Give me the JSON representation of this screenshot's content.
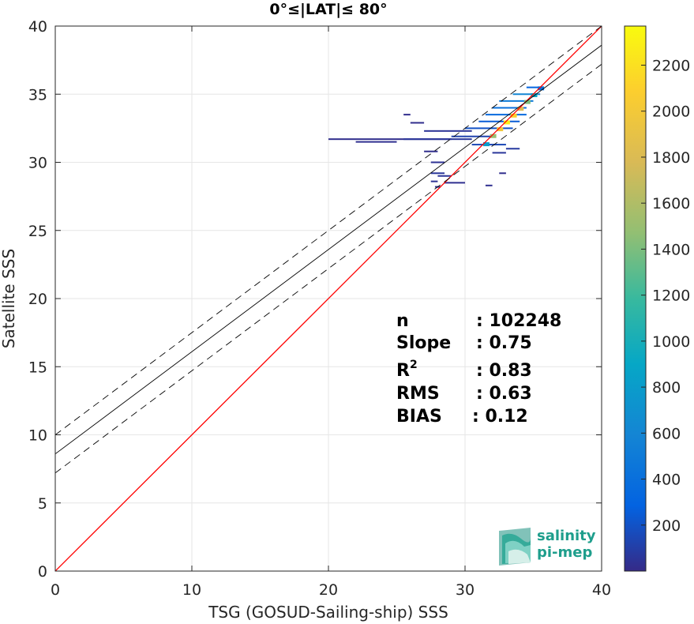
{
  "chart_data": {
    "type": "heatmap",
    "title": "0°≤|LAT|≤ 80°",
    "xlabel": "TSG (GOSUD-Sailing-ship) SSS",
    "ylabel": "Satellite SSS",
    "xlim": [
      0,
      40
    ],
    "ylim": [
      0,
      40
    ],
    "xticks": [
      "0",
      "10",
      "20",
      "30",
      "40"
    ],
    "yticks": [
      "0",
      "5",
      "10",
      "15",
      "20",
      "25",
      "30",
      "35",
      "40"
    ],
    "grid": true,
    "colorbar": {
      "ticks": [
        "200",
        "400",
        "600",
        "800",
        "1000",
        "1200",
        "1400",
        "1600",
        "1800",
        "2000",
        "2200"
      ],
      "range": [
        0,
        2370
      ],
      "colormap": "parula"
    },
    "lines": [
      {
        "role": "identity",
        "slope": 1,
        "intercept": 0,
        "color": "#ff0000",
        "style": "solid"
      },
      {
        "role": "fit",
        "slope": 0.75,
        "intercept": 8.6,
        "color": "#000000",
        "style": "solid"
      },
      {
        "role": "fit-upper",
        "slope": 0.75,
        "intercept": 10.0,
        "color": "#000000",
        "style": "dashed"
      },
      {
        "role": "fit-lower",
        "slope": 0.75,
        "intercept": 7.2,
        "color": "#000000",
        "style": "dashed"
      }
    ],
    "density_segments": [
      {
        "x0": 20.0,
        "x1": 29.0,
        "y": 31.7,
        "count": 20
      },
      {
        "x0": 22.0,
        "x1": 25.0,
        "y": 31.5,
        "count": 30
      },
      {
        "x0": 25.5,
        "x1": 30.5,
        "y": 31.7,
        "count": 60
      },
      {
        "x0": 27.0,
        "x1": 30.5,
        "y": 32.3,
        "count": 50
      },
      {
        "x0": 29.0,
        "x1": 32.0,
        "y": 31.9,
        "count": 120
      },
      {
        "x0": 30.0,
        "x1": 33.5,
        "y": 32.5,
        "count": 200
      },
      {
        "x0": 30.5,
        "x1": 33.0,
        "y": 31.3,
        "count": 150
      },
      {
        "x0": 31.0,
        "x1": 34.0,
        "y": 33.0,
        "count": 250
      },
      {
        "x0": 31.5,
        "x1": 34.5,
        "y": 33.5,
        "count": 350
      },
      {
        "x0": 32.0,
        "x1": 34.5,
        "y": 34.0,
        "count": 400
      },
      {
        "x0": 32.5,
        "x1": 35.0,
        "y": 34.5,
        "count": 500
      },
      {
        "x0": 33.5,
        "x1": 35.5,
        "y": 35.0,
        "count": 600
      },
      {
        "x0": 34.5,
        "x1": 35.5,
        "y": 35.5,
        "count": 300
      },
      {
        "x0": 27.5,
        "x1": 28.5,
        "y": 30.0,
        "count": 40
      },
      {
        "x0": 27.5,
        "x1": 28.5,
        "y": 29.2,
        "count": 60
      },
      {
        "x0": 28.0,
        "x1": 29.0,
        "y": 29.0,
        "count": 50
      },
      {
        "x0": 27.5,
        "x1": 28.0,
        "y": 28.6,
        "count": 40
      },
      {
        "x0": 28.5,
        "x1": 30.0,
        "y": 28.5,
        "count": 30
      },
      {
        "x0": 27.8,
        "x1": 28.2,
        "y": 28.2,
        "count": 30
      },
      {
        "x0": 26.0,
        "x1": 27.0,
        "y": 32.9,
        "count": 20
      },
      {
        "x0": 25.5,
        "x1": 26.0,
        "y": 33.5,
        "count": 20
      },
      {
        "x0": 27.0,
        "x1": 28.0,
        "y": 30.8,
        "count": 20
      },
      {
        "x0": 31.5,
        "x1": 32.0,
        "y": 28.3,
        "count": 30
      },
      {
        "x0": 32.5,
        "x1": 33.0,
        "y": 29.2,
        "count": 20
      },
      {
        "x0": 33.0,
        "x1": 34.0,
        "y": 31.0,
        "count": 80
      },
      {
        "x0": 32.0,
        "x1": 33.0,
        "y": 30.7,
        "count": 60
      }
    ],
    "density_core": [
      {
        "x": 31.5,
        "y": 31.3,
        "count": 800
      },
      {
        "x": 32.0,
        "y": 31.9,
        "count": 1500
      },
      {
        "x": 32.5,
        "y": 32.4,
        "count": 2000
      },
      {
        "x": 33.0,
        "y": 32.9,
        "count": 2300
      },
      {
        "x": 33.5,
        "y": 33.4,
        "count": 2100
      },
      {
        "x": 34.0,
        "y": 33.9,
        "count": 1800
      },
      {
        "x": 34.5,
        "y": 34.4,
        "count": 1400
      },
      {
        "x": 35.0,
        "y": 34.9,
        "count": 900
      },
      {
        "x": 35.5,
        "y": 35.4,
        "count": 400
      }
    ]
  },
  "stats": [
    {
      "label": "n",
      "value": ": 102248"
    },
    {
      "label": "Slope",
      "value": ": 0.75"
    },
    {
      "label": "R",
      "sup": "2",
      "value": ": 0.83"
    },
    {
      "label": "RMS",
      "value": ": 0.63"
    },
    {
      "label": "BIAS",
      "value": ": 0.12"
    }
  ],
  "logo": {
    "line1": "salinity",
    "line2": "pi-mep"
  }
}
